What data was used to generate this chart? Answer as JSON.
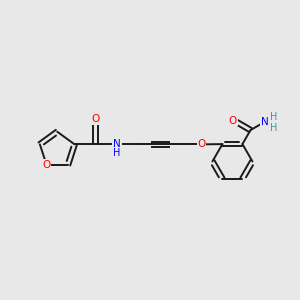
{
  "background_color": "#e8e8e8",
  "bond_color": "#1a1a1a",
  "atom_colors": {
    "O": "#ff0000",
    "N": "#0000ff",
    "C": "#1a1a1a",
    "H_amide": "#3d9999",
    "H_nh2": "#3d9999"
  },
  "figsize": [
    3.0,
    3.0
  ],
  "dpi": 100,
  "xlim": [
    0,
    10
  ],
  "ylim": [
    0,
    10
  ]
}
